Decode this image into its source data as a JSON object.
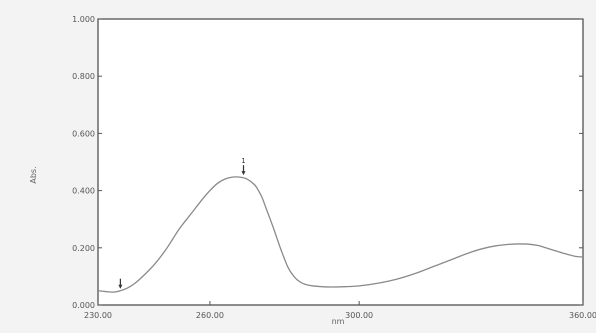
{
  "chart_data": {
    "type": "line",
    "title": "",
    "xlabel": "nm",
    "ylabel": "Abs.",
    "xlim": [
      230.0,
      360.0
    ],
    "ylim": [
      0.0,
      1.0
    ],
    "x_ticks": [
      230.0,
      260.0,
      300.0,
      360.0
    ],
    "x_tick_labels": [
      "230.00",
      "260.00",
      "300.00",
      "360.00"
    ],
    "y_ticks": [
      0.0,
      0.2,
      0.4,
      0.6,
      0.8,
      1.0
    ],
    "y_tick_labels": [
      "0.000",
      "0.200",
      "0.400",
      "0.600",
      "0.800",
      "1.000"
    ],
    "grid": false,
    "series": [
      {
        "x": [
          230,
          232,
          234,
          236,
          238,
          240,
          242,
          245,
          248,
          250,
          252,
          255,
          258,
          260,
          262,
          264,
          266,
          268,
          270,
          272,
          273,
          274,
          275,
          277,
          279,
          281,
          283,
          285,
          287,
          290,
          293,
          296,
          300,
          305,
          310,
          315,
          320,
          325,
          330,
          335,
          340,
          345,
          348,
          350,
          352,
          355,
          358,
          360
        ],
        "y": [
          0.05,
          0.047,
          0.045,
          0.05,
          0.06,
          0.077,
          0.1,
          0.14,
          0.19,
          0.23,
          0.27,
          0.32,
          0.37,
          0.4,
          0.425,
          0.44,
          0.447,
          0.447,
          0.44,
          0.42,
          0.4,
          0.375,
          0.34,
          0.27,
          0.195,
          0.13,
          0.093,
          0.075,
          0.068,
          0.064,
          0.063,
          0.064,
          0.067,
          0.076,
          0.09,
          0.11,
          0.135,
          0.16,
          0.185,
          0.203,
          0.212,
          0.213,
          0.208,
          0.2,
          0.192,
          0.18,
          0.17,
          0.168
        ],
        "color": "#8a8a8a"
      }
    ],
    "markers": [
      {
        "x": 236,
        "y": 0.05,
        "label": ""
      },
      {
        "x": 269,
        "y": 0.447,
        "label": "1"
      }
    ]
  }
}
